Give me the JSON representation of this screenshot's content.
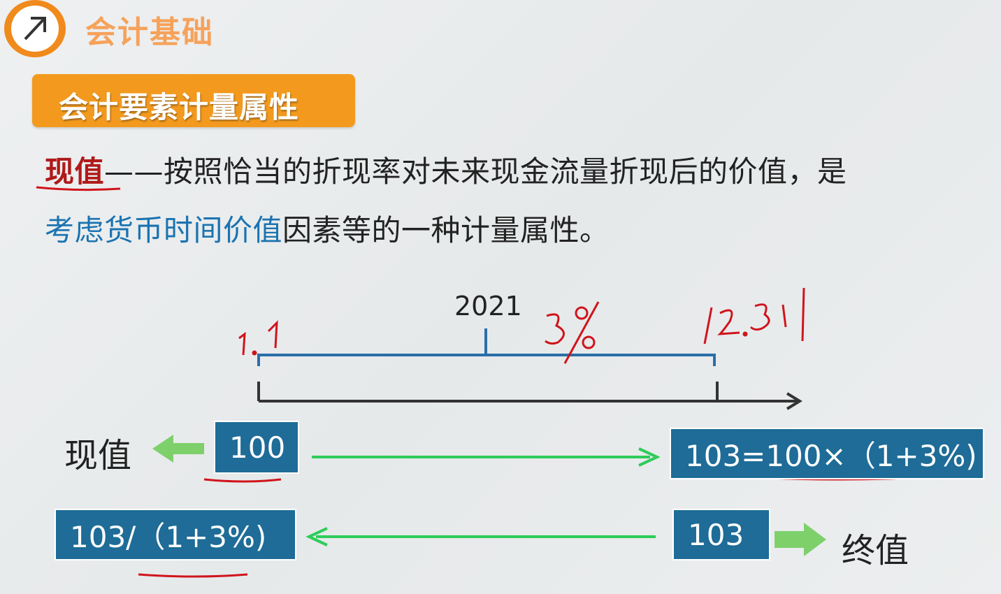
{
  "header": {
    "course_title": "会计基础",
    "section_title": "会计要素计量属性"
  },
  "definition": {
    "term": "现值",
    "line1_rest": "——按照恰当的折现率对未来现金流量折现后的价值，是",
    "line2_highlight": "考虑货币时间价值",
    "line2_rest": "因素等的一种计量属性。"
  },
  "timeline": {
    "year": "2021",
    "start_annotation": "1.1",
    "rate_annotation": "3%",
    "end_annotation": "12.31"
  },
  "boxes": {
    "present_value": "100",
    "future_formula": "103=100×（1+3%)",
    "discount_formula": "103/（1+3%)",
    "future_value": "103"
  },
  "labels": {
    "present_value_label": "现值",
    "future_value_label": "终值"
  },
  "colors": {
    "brand_orange": "#f39a1e",
    "box_blue": "#1e6c97",
    "arrow_green": "#2ecc5a",
    "ink_red": "#d0141c",
    "timeline_blue": "#2a6fa8"
  },
  "icons": {
    "logo": "diagonal-arrow-icon"
  }
}
